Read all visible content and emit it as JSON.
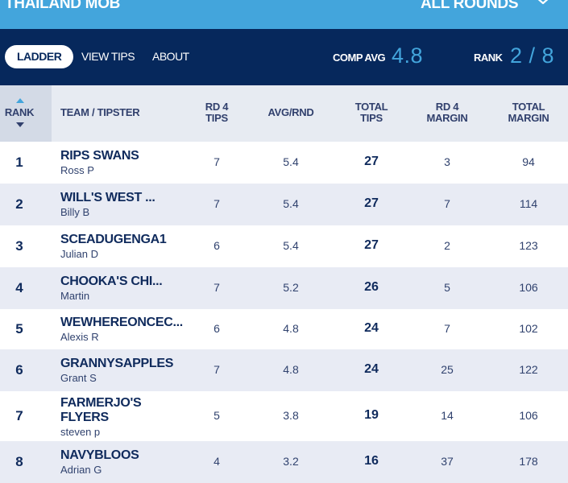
{
  "header": {
    "competition_title": "THAILAND MOB",
    "round_selector": "ALL ROUNDS",
    "chevron_icon": "chevron-down-icon"
  },
  "nav": {
    "tabs": [
      {
        "label": "LADDER",
        "active": true
      },
      {
        "label": "VIEW TIPS",
        "active": false
      },
      {
        "label": "ABOUT",
        "active": false
      }
    ],
    "comp_avg_label": "COMP AVG",
    "comp_avg_value": "4.8",
    "rank_label": "RANK",
    "rank_value": "2 / 8"
  },
  "table": {
    "columns": {
      "rank": "RANK",
      "team": "TEAM / TIPSTER",
      "rd4_tips": [
        "RD 4",
        "TIPS"
      ],
      "avg_rnd": "AVG/RND",
      "total_tips": [
        "TOTAL",
        "TIPS"
      ],
      "rd4_margin": [
        "RD 4",
        "MARGIN"
      ],
      "total_margin": [
        "TOTAL",
        "MARGIN"
      ]
    },
    "rows": [
      {
        "rank": "1",
        "team": "RIPS SWANS",
        "tipster": "Ross P",
        "rd4_tips": "7",
        "avg": "5.4",
        "total": "27",
        "rd4_margin": "3",
        "total_margin": "94"
      },
      {
        "rank": "2",
        "team": "WILL'S WEST ...",
        "tipster": "Billy B",
        "rd4_tips": "7",
        "avg": "5.4",
        "total": "27",
        "rd4_margin": "7",
        "total_margin": "114"
      },
      {
        "rank": "3",
        "team": "SCEADUGENGA1",
        "tipster": "Julian D",
        "rd4_tips": "6",
        "avg": "5.4",
        "total": "27",
        "rd4_margin": "2",
        "total_margin": "123"
      },
      {
        "rank": "4",
        "team": "CHOOKA'S CHI...",
        "tipster": "Martin",
        "rd4_tips": "7",
        "avg": "5.2",
        "total": "26",
        "rd4_margin": "5",
        "total_margin": "106"
      },
      {
        "rank": "5",
        "team": "WEWHEREONCEC...",
        "tipster": "Alexis R",
        "rd4_tips": "6",
        "avg": "4.8",
        "total": "24",
        "rd4_margin": "7",
        "total_margin": "102"
      },
      {
        "rank": "6",
        "team": "GRANNYSAPPLES",
        "tipster": "Grant S",
        "rd4_tips": "7",
        "avg": "4.8",
        "total": "24",
        "rd4_margin": "25",
        "total_margin": "122"
      },
      {
        "rank": "7",
        "team": "FARMERJO'S FLYERS",
        "tipster": "steven p",
        "rd4_tips": "5",
        "avg": "3.8",
        "total": "19",
        "rd4_margin": "14",
        "total_margin": "106"
      },
      {
        "rank": "8",
        "team": "NAVYBLOOS",
        "tipster": "Adrian G",
        "rd4_tips": "4",
        "avg": "3.2",
        "total": "16",
        "rd4_margin": "37",
        "total_margin": "178"
      }
    ]
  }
}
